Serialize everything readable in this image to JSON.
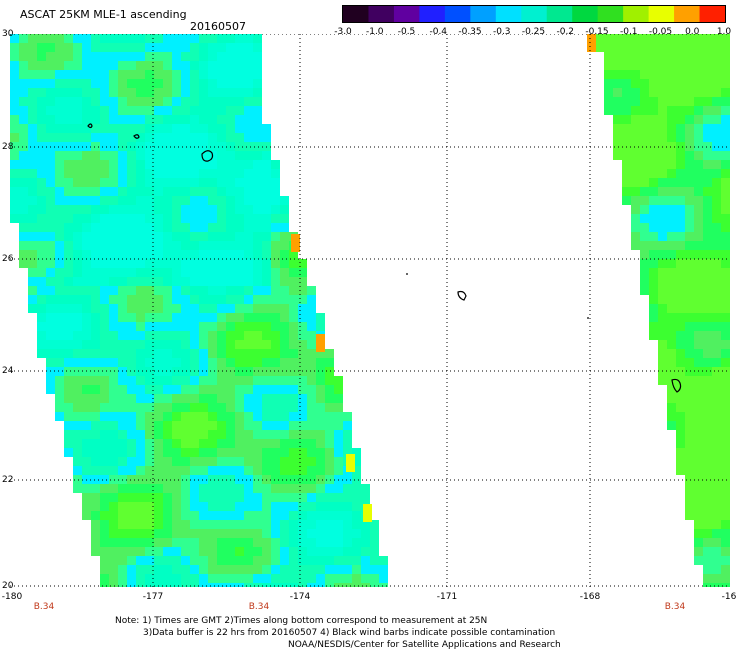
{
  "header": {
    "title": "ASCAT 25KM MLE-1 ascending",
    "date": "20160507"
  },
  "colorbar": {
    "colors": [
      "#200020",
      "#400060",
      "#6000a0",
      "#2020ff",
      "#0050ff",
      "#00a0ff",
      "#00e0ff",
      "#00f0d0",
      "#00e890",
      "#00d840",
      "#30e020",
      "#a0f000",
      "#e8ff00",
      "#ffa000",
      "#ff2000"
    ],
    "labels": [
      "-3.0",
      "-1.0",
      "-0.5",
      "-0.4",
      "-0.35",
      "-0.3",
      "-0.25",
      "-0.2",
      "-0.15",
      "-0.1",
      "-0.05",
      "0.0",
      "1.0"
    ]
  },
  "axes": {
    "lat_labels": [
      "30",
      "28",
      "26",
      "24",
      "22",
      "20"
    ],
    "lon_labels": [
      "-180",
      "-177",
      "-174",
      "-171",
      "-168",
      "-16"
    ]
  },
  "rev_labels": [
    "B.34",
    "B.34",
    "B.34"
  ],
  "notes": [
    "Note: 1) Times are GMT 2)Times along bottom correspond to measurement at 25N",
    "3)Data buffer is 22 hrs from 20160507 4) Black wind barbs indicate possible contamination",
    "NOAA/NESDIS/Center for Satellite Applications and Research"
  ]
}
